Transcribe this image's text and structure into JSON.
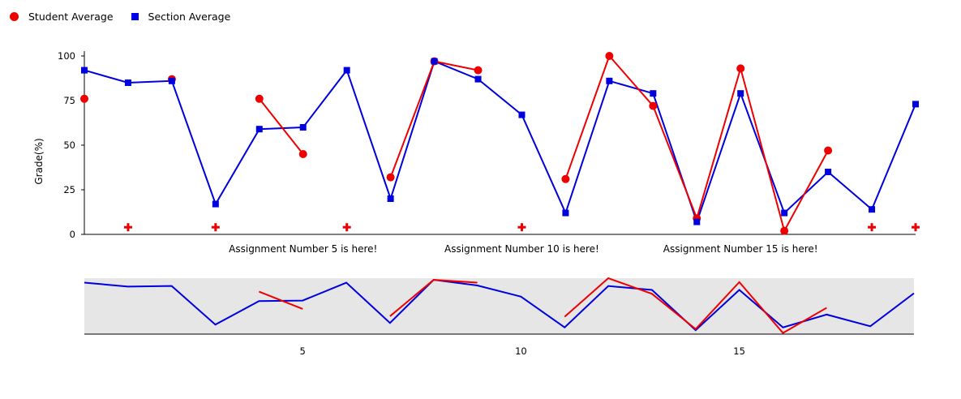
{
  "chart_data": {
    "type": "line",
    "title": "",
    "ylabel": "Grade(%)",
    "xlabel": "",
    "ylim": [
      0,
      100
    ],
    "xlim": [
      0,
      19
    ],
    "yticks": [
      0,
      25,
      50,
      75,
      100
    ],
    "grid": false,
    "legend_position": "top-left",
    "series": [
      {
        "name": "Student Average",
        "color": "#ee0000",
        "marker": "circle",
        "points": [
          [
            0,
            76
          ],
          [
            2,
            87
          ],
          [
            4,
            76
          ],
          [
            5,
            45
          ],
          [
            7,
            32
          ],
          [
            8,
            97
          ],
          [
            9,
            92
          ],
          [
            11,
            31
          ],
          [
            12,
            100
          ],
          [
            13,
            72
          ],
          [
            14,
            9
          ],
          [
            15,
            93
          ],
          [
            16,
            2
          ],
          [
            17,
            47
          ]
        ],
        "segments": [
          [
            [
              4,
              76
            ],
            [
              5,
              45
            ]
          ],
          [
            [
              7,
              32
            ],
            [
              8,
              97
            ],
            [
              9,
              92
            ]
          ],
          [
            [
              11,
              31
            ],
            [
              12,
              100
            ],
            [
              13,
              72
            ],
            [
              14,
              9
            ],
            [
              15,
              93
            ],
            [
              16,
              2
            ],
            [
              17,
              47
            ]
          ]
        ]
      },
      {
        "name": "Section Average",
        "color": "#0000dd",
        "marker": "square",
        "points": [
          [
            0,
            92
          ],
          [
            1,
            85
          ],
          [
            2,
            86
          ],
          [
            3,
            17
          ],
          [
            4,
            59
          ],
          [
            5,
            60
          ],
          [
            6,
            92
          ],
          [
            7,
            20
          ],
          [
            8,
            97
          ],
          [
            9,
            87
          ],
          [
            10,
            67
          ],
          [
            11,
            12
          ],
          [
            12,
            86
          ],
          [
            13,
            79
          ],
          [
            14,
            7
          ],
          [
            15,
            79
          ],
          [
            16,
            12
          ],
          [
            17,
            35
          ],
          [
            18,
            14
          ],
          [
            19,
            73
          ]
        ]
      }
    ],
    "markers": {
      "color": "#ee0000",
      "symbol": "plus",
      "y": 4,
      "x": [
        1,
        3,
        6,
        10,
        18,
        19
      ]
    },
    "annotations": [
      {
        "x": 5,
        "text": "Assignment Number 5 is here!"
      },
      {
        "x": 10,
        "text": "Assignment Number 10 is here!"
      },
      {
        "x": 15,
        "text": "Assignment Number 15 is here!"
      }
    ],
    "overview": {
      "background": "#e6e6e6",
      "xticks": [
        5,
        10,
        15
      ],
      "xlim": [
        0,
        19
      ],
      "ylim": [
        0,
        100
      ]
    }
  }
}
